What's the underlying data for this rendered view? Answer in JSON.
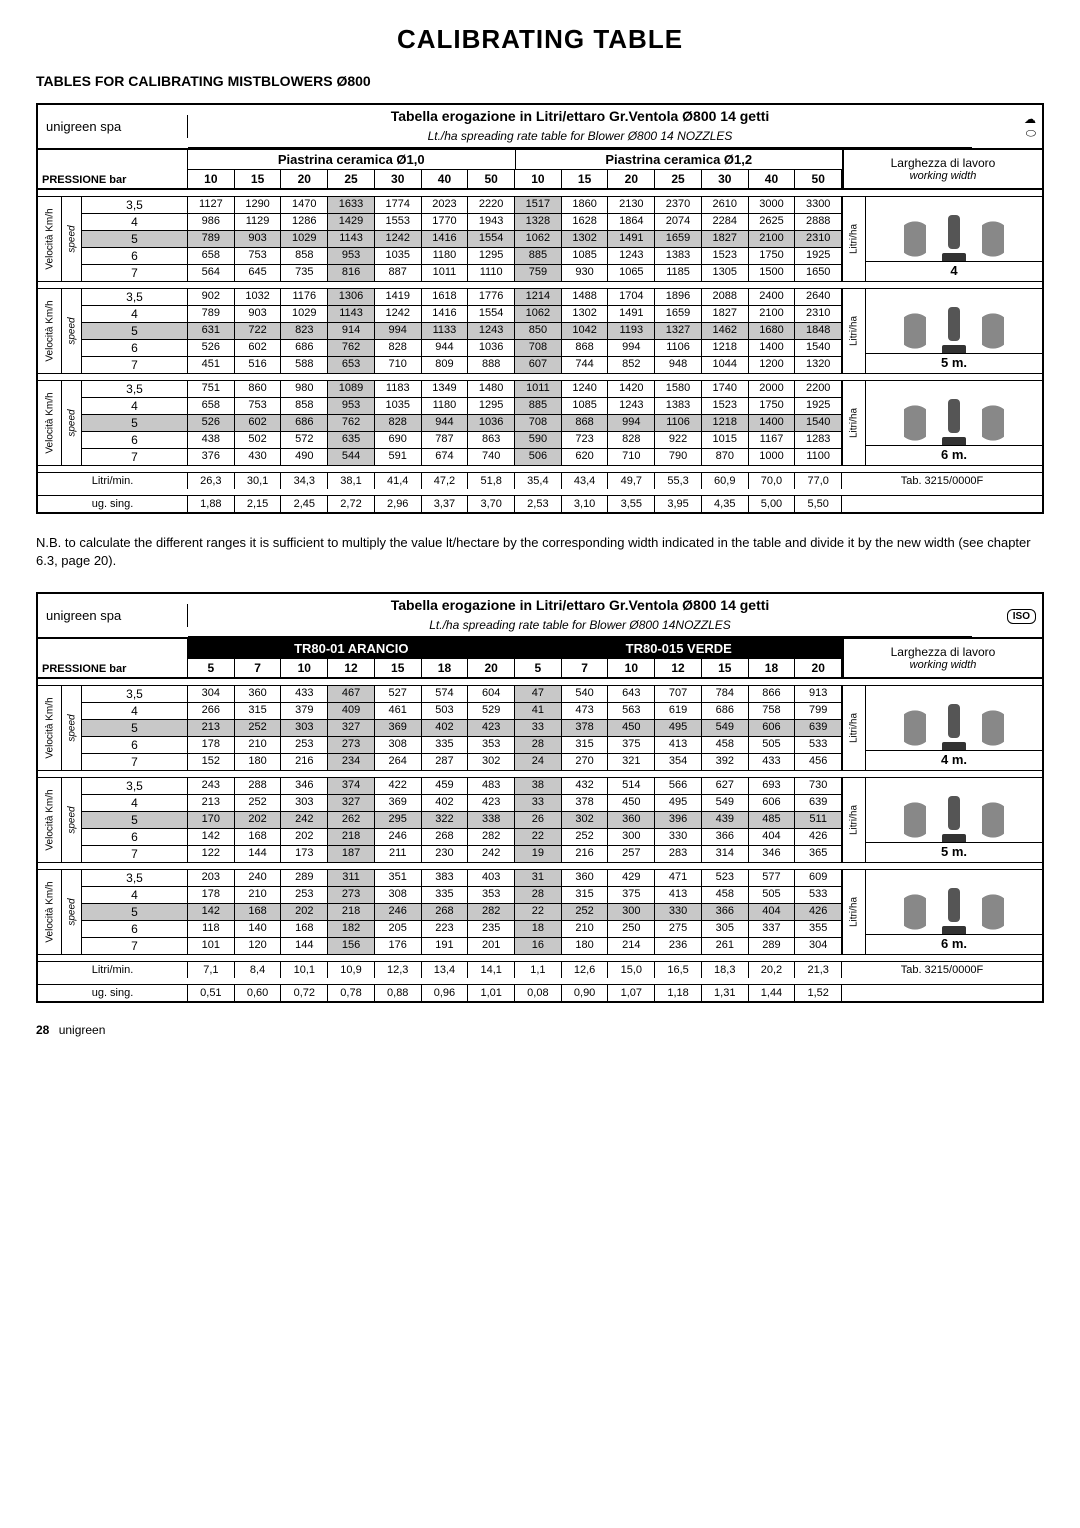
{
  "page": {
    "title": "CALIBRATING TABLE",
    "subtitle": "TABLES FOR CALIBRATING MISTBLOWERS Ø800",
    "note": "N.B. to calculate the different ranges it is sufficient to multiply the value lt/hectare by the corresponding width indicated in the table and divide it by the new width (see chapter 6.3, page 20).",
    "footer_page": "28",
    "footer_brand": "unigreen"
  },
  "labels": {
    "company": "unigreen spa",
    "pressione": "PRESSIONE bar",
    "velocita": "Velocità Km/h",
    "speed": "speed",
    "litri_ha": "Litri/ha",
    "litri_min": "Litri/min.",
    "ug_sing": "ug. sing.",
    "larghezza": "Larghezza di lavoro",
    "working_width": "working width",
    "tab_ref": "Tab. 3215/0000F"
  },
  "table1": {
    "heading": "Tabella erogazione in Litri/ettaro Gr.Ventola Ø800 14 getti",
    "subheading": "Lt./ha spreading rate table for Blower Ø800 14 NOZZLES",
    "groupA": "Piastrina ceramica Ø1,0",
    "groupB": "Piastrina ceramica Ø1,2",
    "cols": [
      "10",
      "15",
      "20",
      "25",
      "30",
      "40",
      "50",
      "10",
      "15",
      "20",
      "25",
      "30",
      "40",
      "50"
    ],
    "speeds": [
      "3,5",
      "4",
      "5",
      "6",
      "7"
    ],
    "hl_cols": [
      3,
      7
    ],
    "blocks": [
      {
        "width": "4",
        "rows": [
          [
            "1127",
            "1290",
            "1470",
            "1633",
            "1774",
            "2023",
            "2220",
            "1517",
            "1860",
            "2130",
            "2370",
            "2610",
            "3000",
            "3300"
          ],
          [
            "986",
            "1129",
            "1286",
            "1429",
            "1553",
            "1770",
            "1943",
            "1328",
            "1628",
            "1864",
            "2074",
            "2284",
            "2625",
            "2888"
          ],
          [
            "789",
            "903",
            "1029",
            "1143",
            "1242",
            "1416",
            "1554",
            "1062",
            "1302",
            "1491",
            "1659",
            "1827",
            "2100",
            "2310"
          ],
          [
            "658",
            "753",
            "858",
            "953",
            "1035",
            "1180",
            "1295",
            "885",
            "1085",
            "1243",
            "1383",
            "1523",
            "1750",
            "1925"
          ],
          [
            "564",
            "645",
            "735",
            "816",
            "887",
            "1011",
            "1110",
            "759",
            "930",
            "1065",
            "1185",
            "1305",
            "1500",
            "1650"
          ]
        ]
      },
      {
        "width": "5 m.",
        "rows": [
          [
            "902",
            "1032",
            "1176",
            "1306",
            "1419",
            "1618",
            "1776",
            "1214",
            "1488",
            "1704",
            "1896",
            "2088",
            "2400",
            "2640"
          ],
          [
            "789",
            "903",
            "1029",
            "1143",
            "1242",
            "1416",
            "1554",
            "1062",
            "1302",
            "1491",
            "1659",
            "1827",
            "2100",
            "2310"
          ],
          [
            "631",
            "722",
            "823",
            "914",
            "994",
            "1133",
            "1243",
            "850",
            "1042",
            "1193",
            "1327",
            "1462",
            "1680",
            "1848"
          ],
          [
            "526",
            "602",
            "686",
            "762",
            "828",
            "944",
            "1036",
            "708",
            "868",
            "994",
            "1106",
            "1218",
            "1400",
            "1540"
          ],
          [
            "451",
            "516",
            "588",
            "653",
            "710",
            "809",
            "888",
            "607",
            "744",
            "852",
            "948",
            "1044",
            "1200",
            "1320"
          ]
        ]
      },
      {
        "width": "6 m.",
        "rows": [
          [
            "751",
            "860",
            "980",
            "1089",
            "1183",
            "1349",
            "1480",
            "1011",
            "1240",
            "1420",
            "1580",
            "1740",
            "2000",
            "2200"
          ],
          [
            "658",
            "753",
            "858",
            "953",
            "1035",
            "1180",
            "1295",
            "885",
            "1085",
            "1243",
            "1383",
            "1523",
            "1750",
            "1925"
          ],
          [
            "526",
            "602",
            "686",
            "762",
            "828",
            "944",
            "1036",
            "708",
            "868",
            "994",
            "1106",
            "1218",
            "1400",
            "1540"
          ],
          [
            "438",
            "502",
            "572",
            "635",
            "690",
            "787",
            "863",
            "590",
            "723",
            "828",
            "922",
            "1015",
            "1167",
            "1283"
          ],
          [
            "376",
            "430",
            "490",
            "544",
            "591",
            "674",
            "740",
            "506",
            "620",
            "710",
            "790",
            "870",
            "1000",
            "1100"
          ]
        ]
      }
    ],
    "litri_min": [
      "26,3",
      "30,1",
      "34,3",
      "38,1",
      "41,4",
      "47,2",
      "51,8",
      "35,4",
      "43,4",
      "49,7",
      "55,3",
      "60,9",
      "70,0",
      "77,0"
    ],
    "ug_sing": [
      "1,88",
      "2,15",
      "2,45",
      "2,72",
      "2,96",
      "3,37",
      "3,70",
      "2,53",
      "3,10",
      "3,55",
      "3,95",
      "4,35",
      "5,00",
      "5,50"
    ]
  },
  "table2": {
    "heading": "Tabella erogazione in Litri/ettaro Gr.Ventola Ø800 14 getti",
    "subheading": "Lt./ha spreading rate table for Blower Ø800 14NOZZLES",
    "groupA": "TR80-01 ARANCIO",
    "groupB": "TR80-015 VERDE",
    "groupA_bg": "#000",
    "groupA_fg": "#fff",
    "groupB_bg": "#000",
    "groupB_fg": "#fff",
    "cols": [
      "5",
      "7",
      "10",
      "12",
      "15",
      "18",
      "20",
      "5",
      "7",
      "10",
      "12",
      "15",
      "18",
      "20"
    ],
    "speeds": [
      "3,5",
      "4",
      "5",
      "6",
      "7"
    ],
    "hl_cols": [
      3,
      7
    ],
    "blocks": [
      {
        "width": "4 m.",
        "rows": [
          [
            "304",
            "360",
            "433",
            "467",
            "527",
            "574",
            "604",
            "47",
            "540",
            "643",
            "707",
            "784",
            "866",
            "913"
          ],
          [
            "266",
            "315",
            "379",
            "409",
            "461",
            "503",
            "529",
            "41",
            "473",
            "563",
            "619",
            "686",
            "758",
            "799"
          ],
          [
            "213",
            "252",
            "303",
            "327",
            "369",
            "402",
            "423",
            "33",
            "378",
            "450",
            "495",
            "549",
            "606",
            "639"
          ],
          [
            "178",
            "210",
            "253",
            "273",
            "308",
            "335",
            "353",
            "28",
            "315",
            "375",
            "413",
            "458",
            "505",
            "533"
          ],
          [
            "152",
            "180",
            "216",
            "234",
            "264",
            "287",
            "302",
            "24",
            "270",
            "321",
            "354",
            "392",
            "433",
            "456"
          ]
        ]
      },
      {
        "width": "5 m.",
        "rows": [
          [
            "243",
            "288",
            "346",
            "374",
            "422",
            "459",
            "483",
            "38",
            "432",
            "514",
            "566",
            "627",
            "693",
            "730"
          ],
          [
            "213",
            "252",
            "303",
            "327",
            "369",
            "402",
            "423",
            "33",
            "378",
            "450",
            "495",
            "549",
            "606",
            "639"
          ],
          [
            "170",
            "202",
            "242",
            "262",
            "295",
            "322",
            "338",
            "26",
            "302",
            "360",
            "396",
            "439",
            "485",
            "511"
          ],
          [
            "142",
            "168",
            "202",
            "218",
            "246",
            "268",
            "282",
            "22",
            "252",
            "300",
            "330",
            "366",
            "404",
            "426"
          ],
          [
            "122",
            "144",
            "173",
            "187",
            "211",
            "230",
            "242",
            "19",
            "216",
            "257",
            "283",
            "314",
            "346",
            "365"
          ]
        ]
      },
      {
        "width": "6 m.",
        "rows": [
          [
            "203",
            "240",
            "289",
            "311",
            "351",
            "383",
            "403",
            "31",
            "360",
            "429",
            "471",
            "523",
            "577",
            "609"
          ],
          [
            "178",
            "210",
            "253",
            "273",
            "308",
            "335",
            "353",
            "28",
            "315",
            "375",
            "413",
            "458",
            "505",
            "533"
          ],
          [
            "142",
            "168",
            "202",
            "218",
            "246",
            "268",
            "282",
            "22",
            "252",
            "300",
            "330",
            "366",
            "404",
            "426"
          ],
          [
            "118",
            "140",
            "168",
            "182",
            "205",
            "223",
            "235",
            "18",
            "210",
            "250",
            "275",
            "305",
            "337",
            "355"
          ],
          [
            "101",
            "120",
            "144",
            "156",
            "176",
            "191",
            "201",
            "16",
            "180",
            "214",
            "236",
            "261",
            "289",
            "304"
          ]
        ]
      }
    ],
    "litri_min": [
      "7,1",
      "8,4",
      "10,1",
      "10,9",
      "12,3",
      "13,4",
      "14,1",
      "1,1",
      "12,6",
      "15,0",
      "16,5",
      "18,3",
      "20,2",
      "21,3"
    ],
    "ug_sing": [
      "0,51",
      "0,60",
      "0,72",
      "0,78",
      "0,88",
      "0,96",
      "1,01",
      "0,08",
      "0,90",
      "1,07",
      "1,18",
      "1,31",
      "1,44",
      "1,52"
    ],
    "iso_badge": "ISO"
  }
}
